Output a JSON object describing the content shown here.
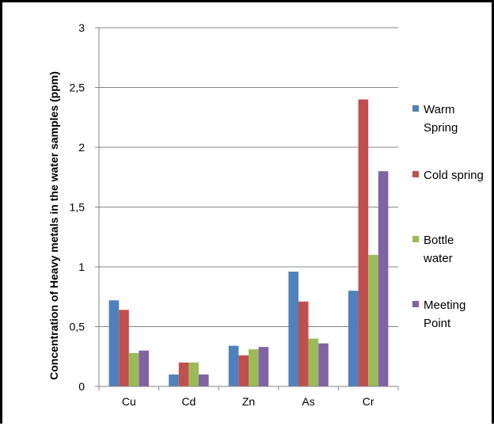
{
  "chart_data": {
    "type": "bar",
    "title": "",
    "xlabel": "",
    "ylabel": "Concentration of Heavy metals in the water samples (ppm)",
    "categories": [
      "Cu",
      "Cd",
      "Zn",
      "As",
      "Cr"
    ],
    "ylim": [
      0,
      3
    ],
    "yticks": [
      "0",
      "0,5",
      "1",
      "1,5",
      "2",
      "2,5",
      "3"
    ],
    "ytick_values": [
      0,
      0.5,
      1,
      1.5,
      2,
      2.5,
      3
    ],
    "grid": true,
    "legend_position": "right",
    "series": [
      {
        "name": "Warm Spring",
        "name_lines": [
          "Warm",
          "Spring"
        ],
        "color": "#4F81BD",
        "values": [
          0.72,
          0.1,
          0.34,
          0.96,
          0.8
        ]
      },
      {
        "name": "Cold spring",
        "name_lines": [
          "Cold spring"
        ],
        "color": "#C0504D",
        "values": [
          0.64,
          0.2,
          0.26,
          0.71,
          2.4
        ]
      },
      {
        "name": "Bottle water",
        "name_lines": [
          "Bottle",
          "water"
        ],
        "color": "#9BBB59",
        "values": [
          0.28,
          0.2,
          0.31,
          0.4,
          1.1
        ]
      },
      {
        "name": "Meeting Point",
        "name_lines": [
          "Meeting",
          "Point"
        ],
        "color": "#8064A2",
        "values": [
          0.3,
          0.1,
          0.33,
          0.36,
          1.8
        ]
      }
    ]
  }
}
